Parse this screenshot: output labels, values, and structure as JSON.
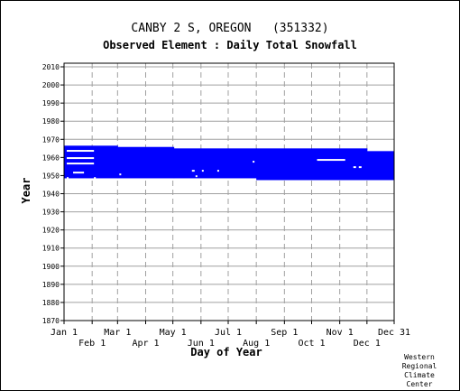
{
  "chart_data": {
    "type": "bar",
    "title": "CANBY 2 S, OREGON   (351332)",
    "subtitle": "Observed Element : Daily Total Snowfall",
    "xlabel": "Day of Year",
    "ylabel": "Year",
    "xlim": [
      1,
      365
    ],
    "ylim": [
      1870,
      2012
    ],
    "yticks": [
      1870,
      1880,
      1890,
      1900,
      1910,
      1920,
      1930,
      1940,
      1950,
      1960,
      1970,
      1980,
      1990,
      2000,
      2010
    ],
    "xticks_upper": [
      {
        "label": "Jan 1",
        "day": 1
      },
      {
        "label": "Mar 1",
        "day": 60
      },
      {
        "label": "May 1",
        "day": 121
      },
      {
        "label": "Jul 1",
        "day": 182
      },
      {
        "label": "Sep 1",
        "day": 244
      },
      {
        "label": "Nov 1",
        "day": 305
      },
      {
        "label": "Dec 31",
        "day": 365
      }
    ],
    "xticks_lower": [
      {
        "label": "Feb 1",
        "day": 32
      },
      {
        "label": "Apr 1",
        "day": 91
      },
      {
        "label": "Jun 1",
        "day": 152
      },
      {
        "label": "Aug 1",
        "day": 213
      },
      {
        "label": "Oct 1",
        "day": 274
      },
      {
        "label": "Dec 1",
        "day": 335
      }
    ],
    "grid": true,
    "series_color": "#0000ff",
    "coverage": [
      {
        "start_day": 1,
        "end_day": 60,
        "start_year": 1948.5,
        "end_year": 1966.5
      },
      {
        "start_day": 60,
        "end_day": 122,
        "start_year": 1948.5,
        "end_year": 1965.8
      },
      {
        "start_day": 122,
        "end_day": 213,
        "start_year": 1948.5,
        "end_year": 1965.0
      },
      {
        "start_day": 213,
        "end_day": 335,
        "start_year": 1947.5,
        "end_year": 1965.0
      },
      {
        "start_day": 335,
        "end_day": 365,
        "start_year": 1947.5,
        "end_year": 1963.5
      }
    ],
    "gaps": [
      {
        "start_day": 4,
        "end_day": 34,
        "year": 1964
      },
      {
        "start_day": 4,
        "end_day": 34,
        "year": 1960
      },
      {
        "start_day": 4,
        "end_day": 34,
        "year": 1957
      },
      {
        "start_day": 11,
        "end_day": 23,
        "year": 1952
      },
      {
        "start_day": 4,
        "end_day": 6,
        "year": 1949
      },
      {
        "start_day": 34,
        "end_day": 36,
        "year": 1949
      },
      {
        "start_day": 62,
        "end_day": 64,
        "year": 1951
      },
      {
        "start_day": 142,
        "end_day": 145,
        "year": 1953
      },
      {
        "start_day": 153,
        "end_day": 155,
        "year": 1953
      },
      {
        "start_day": 146,
        "end_day": 148,
        "year": 1950
      },
      {
        "start_day": 170,
        "end_day": 172,
        "year": 1953
      },
      {
        "start_day": 209,
        "end_day": 211,
        "year": 1958
      },
      {
        "start_day": 280,
        "end_day": 311,
        "year": 1959
      },
      {
        "start_day": 320,
        "end_day": 323,
        "year": 1955
      },
      {
        "start_day": 326,
        "end_day": 329,
        "year": 1955
      }
    ]
  },
  "credit": [
    "Western",
    "Regional",
    "Climate",
    "Center"
  ]
}
